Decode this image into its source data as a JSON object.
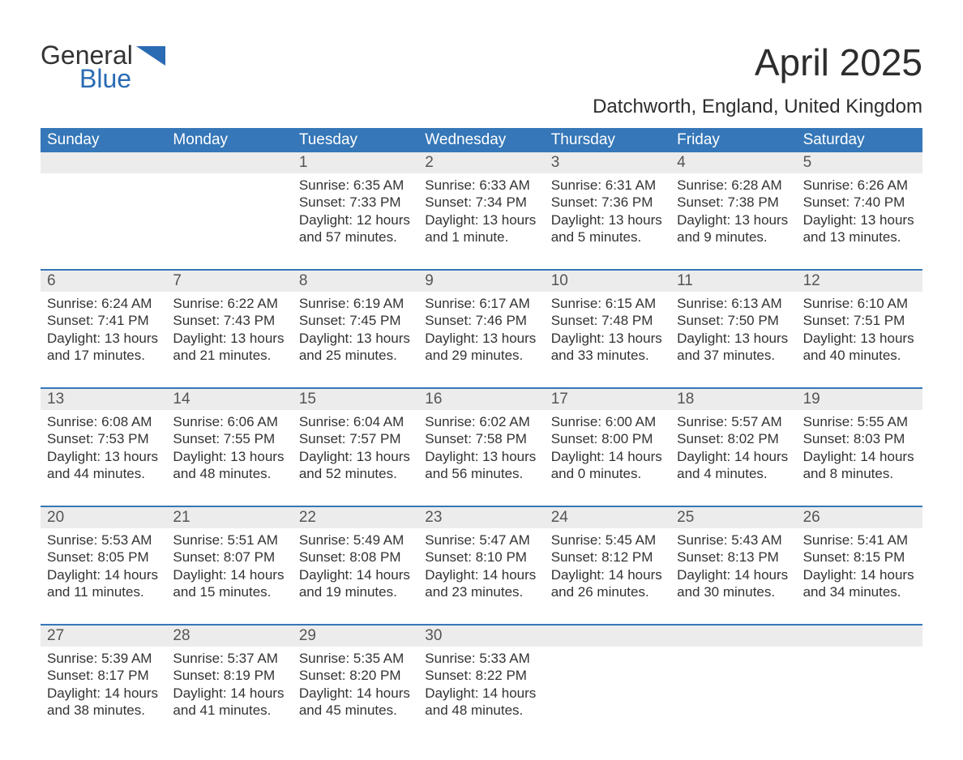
{
  "logo": {
    "word1": "General",
    "word2": "Blue",
    "flag_color": "#2a6bb3"
  },
  "title": "April 2025",
  "location": "Datchworth, England, United Kingdom",
  "colors": {
    "header_bg": "#3577b8",
    "header_text": "#ffffff",
    "daynum_bg": "#ececec",
    "week_border": "#3577b8",
    "body_text": "#333333",
    "page_bg": "#ffffff"
  },
  "day_headers": [
    "Sunday",
    "Monday",
    "Tuesday",
    "Wednesday",
    "Thursday",
    "Friday",
    "Saturday"
  ],
  "weeks": [
    [
      {
        "day": "",
        "sunrise": "",
        "sunset": "",
        "daylight": ""
      },
      {
        "day": "",
        "sunrise": "",
        "sunset": "",
        "daylight": ""
      },
      {
        "day": "1",
        "sunrise": "Sunrise: 6:35 AM",
        "sunset": "Sunset: 7:33 PM",
        "daylight": "Daylight: 12 hours and 57 minutes."
      },
      {
        "day": "2",
        "sunrise": "Sunrise: 6:33 AM",
        "sunset": "Sunset: 7:34 PM",
        "daylight": "Daylight: 13 hours and 1 minute."
      },
      {
        "day": "3",
        "sunrise": "Sunrise: 6:31 AM",
        "sunset": "Sunset: 7:36 PM",
        "daylight": "Daylight: 13 hours and 5 minutes."
      },
      {
        "day": "4",
        "sunrise": "Sunrise: 6:28 AM",
        "sunset": "Sunset: 7:38 PM",
        "daylight": "Daylight: 13 hours and 9 minutes."
      },
      {
        "day": "5",
        "sunrise": "Sunrise: 6:26 AM",
        "sunset": "Sunset: 7:40 PM",
        "daylight": "Daylight: 13 hours and 13 minutes."
      }
    ],
    [
      {
        "day": "6",
        "sunrise": "Sunrise: 6:24 AM",
        "sunset": "Sunset: 7:41 PM",
        "daylight": "Daylight: 13 hours and 17 minutes."
      },
      {
        "day": "7",
        "sunrise": "Sunrise: 6:22 AM",
        "sunset": "Sunset: 7:43 PM",
        "daylight": "Daylight: 13 hours and 21 minutes."
      },
      {
        "day": "8",
        "sunrise": "Sunrise: 6:19 AM",
        "sunset": "Sunset: 7:45 PM",
        "daylight": "Daylight: 13 hours and 25 minutes."
      },
      {
        "day": "9",
        "sunrise": "Sunrise: 6:17 AM",
        "sunset": "Sunset: 7:46 PM",
        "daylight": "Daylight: 13 hours and 29 minutes."
      },
      {
        "day": "10",
        "sunrise": "Sunrise: 6:15 AM",
        "sunset": "Sunset: 7:48 PM",
        "daylight": "Daylight: 13 hours and 33 minutes."
      },
      {
        "day": "11",
        "sunrise": "Sunrise: 6:13 AM",
        "sunset": "Sunset: 7:50 PM",
        "daylight": "Daylight: 13 hours and 37 minutes."
      },
      {
        "day": "12",
        "sunrise": "Sunrise: 6:10 AM",
        "sunset": "Sunset: 7:51 PM",
        "daylight": "Daylight: 13 hours and 40 minutes."
      }
    ],
    [
      {
        "day": "13",
        "sunrise": "Sunrise: 6:08 AM",
        "sunset": "Sunset: 7:53 PM",
        "daylight": "Daylight: 13 hours and 44 minutes."
      },
      {
        "day": "14",
        "sunrise": "Sunrise: 6:06 AM",
        "sunset": "Sunset: 7:55 PM",
        "daylight": "Daylight: 13 hours and 48 minutes."
      },
      {
        "day": "15",
        "sunrise": "Sunrise: 6:04 AM",
        "sunset": "Sunset: 7:57 PM",
        "daylight": "Daylight: 13 hours and 52 minutes."
      },
      {
        "day": "16",
        "sunrise": "Sunrise: 6:02 AM",
        "sunset": "Sunset: 7:58 PM",
        "daylight": "Daylight: 13 hours and 56 minutes."
      },
      {
        "day": "17",
        "sunrise": "Sunrise: 6:00 AM",
        "sunset": "Sunset: 8:00 PM",
        "daylight": "Daylight: 14 hours and 0 minutes."
      },
      {
        "day": "18",
        "sunrise": "Sunrise: 5:57 AM",
        "sunset": "Sunset: 8:02 PM",
        "daylight": "Daylight: 14 hours and 4 minutes."
      },
      {
        "day": "19",
        "sunrise": "Sunrise: 5:55 AM",
        "sunset": "Sunset: 8:03 PM",
        "daylight": "Daylight: 14 hours and 8 minutes."
      }
    ],
    [
      {
        "day": "20",
        "sunrise": "Sunrise: 5:53 AM",
        "sunset": "Sunset: 8:05 PM",
        "daylight": "Daylight: 14 hours and 11 minutes."
      },
      {
        "day": "21",
        "sunrise": "Sunrise: 5:51 AM",
        "sunset": "Sunset: 8:07 PM",
        "daylight": "Daylight: 14 hours and 15 minutes."
      },
      {
        "day": "22",
        "sunrise": "Sunrise: 5:49 AM",
        "sunset": "Sunset: 8:08 PM",
        "daylight": "Daylight: 14 hours and 19 minutes."
      },
      {
        "day": "23",
        "sunrise": "Sunrise: 5:47 AM",
        "sunset": "Sunset: 8:10 PM",
        "daylight": "Daylight: 14 hours and 23 minutes."
      },
      {
        "day": "24",
        "sunrise": "Sunrise: 5:45 AM",
        "sunset": "Sunset: 8:12 PM",
        "daylight": "Daylight: 14 hours and 26 minutes."
      },
      {
        "day": "25",
        "sunrise": "Sunrise: 5:43 AM",
        "sunset": "Sunset: 8:13 PM",
        "daylight": "Daylight: 14 hours and 30 minutes."
      },
      {
        "day": "26",
        "sunrise": "Sunrise: 5:41 AM",
        "sunset": "Sunset: 8:15 PM",
        "daylight": "Daylight: 14 hours and 34 minutes."
      }
    ],
    [
      {
        "day": "27",
        "sunrise": "Sunrise: 5:39 AM",
        "sunset": "Sunset: 8:17 PM",
        "daylight": "Daylight: 14 hours and 38 minutes."
      },
      {
        "day": "28",
        "sunrise": "Sunrise: 5:37 AM",
        "sunset": "Sunset: 8:19 PM",
        "daylight": "Daylight: 14 hours and 41 minutes."
      },
      {
        "day": "29",
        "sunrise": "Sunrise: 5:35 AM",
        "sunset": "Sunset: 8:20 PM",
        "daylight": "Daylight: 14 hours and 45 minutes."
      },
      {
        "day": "30",
        "sunrise": "Sunrise: 5:33 AM",
        "sunset": "Sunset: 8:22 PM",
        "daylight": "Daylight: 14 hours and 48 minutes."
      },
      {
        "day": "",
        "sunrise": "",
        "sunset": "",
        "daylight": ""
      },
      {
        "day": "",
        "sunrise": "",
        "sunset": "",
        "daylight": ""
      },
      {
        "day": "",
        "sunrise": "",
        "sunset": "",
        "daylight": ""
      }
    ]
  ]
}
